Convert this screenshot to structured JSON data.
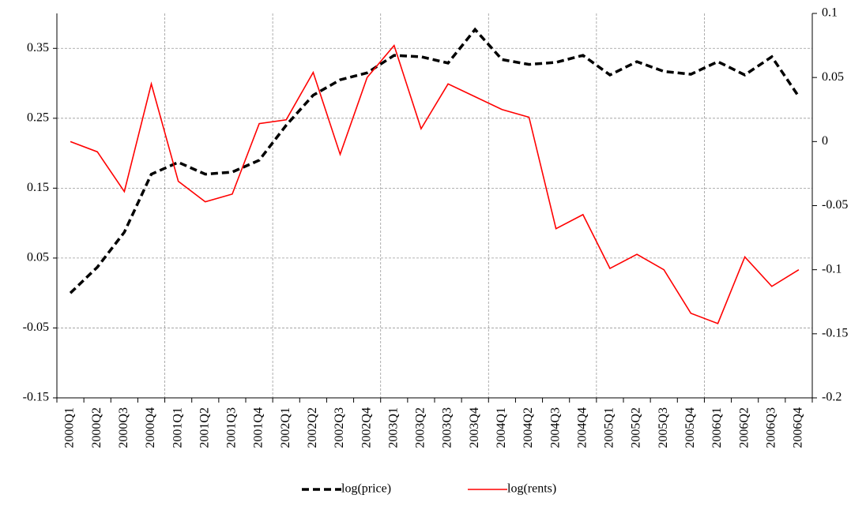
{
  "chart_data": {
    "type": "line",
    "categories": [
      "2000Q1",
      "2000Q2",
      "2000Q3",
      "2000Q4",
      "2001Q1",
      "2001Q2",
      "2001Q3",
      "2001Q4",
      "2002Q1",
      "2002Q2",
      "2002Q3",
      "2002Q4",
      "2003Q1",
      "2003Q2",
      "2003Q3",
      "2003Q4",
      "2004Q1",
      "2004Q2",
      "2004Q3",
      "2004Q4",
      "2005Q1",
      "2005Q2",
      "2005Q3",
      "2005Q4",
      "2006Q1",
      "2006Q2",
      "2006Q3",
      "2006Q4"
    ],
    "series": [
      {
        "name": "log(price)",
        "color": "#000000",
        "dash": true,
        "axis": "y",
        "values": [
          0.0,
          0.037,
          0.087,
          0.17,
          0.187,
          0.17,
          0.173,
          0.19,
          0.24,
          0.283,
          0.305,
          0.315,
          0.34,
          0.338,
          0.329,
          0.377,
          0.334,
          0.327,
          0.33,
          0.34,
          0.312,
          0.331,
          0.317,
          0.313,
          0.331,
          0.312,
          0.338,
          0.281
        ]
      },
      {
        "name": "log(rents)",
        "color": "#ff0000",
        "dash": false,
        "axis": "y2",
        "values": [
          0.0,
          -0.008,
          -0.039,
          0.045,
          -0.031,
          -0.047,
          -0.041,
          0.014,
          0.017,
          0.054,
          -0.01,
          0.05,
          0.075,
          0.01,
          0.045,
          0.035,
          0.025,
          0.019,
          -0.068,
          -0.057,
          -0.099,
          -0.088,
          -0.1,
          -0.134,
          -0.142,
          -0.09,
          -0.113,
          -0.1
        ]
      }
    ],
    "ylim": [
      -0.15,
      0.4
    ],
    "yticks": [
      -0.15,
      -0.05,
      0.05,
      0.15,
      0.25,
      0.35
    ],
    "y2lim": [
      -0.2,
      0.1
    ],
    "y2ticks": [
      -0.2,
      -0.15,
      -0.1,
      -0.05,
      0,
      0.05,
      0.1
    ],
    "grid": true,
    "legend": "bottom"
  }
}
